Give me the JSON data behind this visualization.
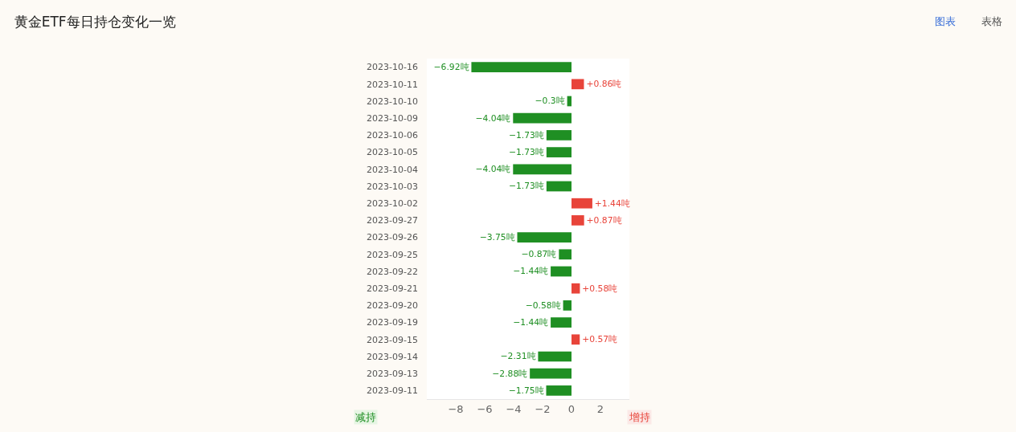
{
  "chart_data": {
    "type": "bar",
    "orientation": "horizontal",
    "title": "黄金ETF每日持仓变化一览",
    "categories": [
      "2023-10-16",
      "2023-10-11",
      "2023-10-10",
      "2023-10-09",
      "2023-10-06",
      "2023-10-05",
      "2023-10-04",
      "2023-10-03",
      "2023-10-02",
      "2023-09-27",
      "2023-09-26",
      "2023-09-25",
      "2023-09-22",
      "2023-09-21",
      "2023-09-20",
      "2023-09-19",
      "2023-09-15",
      "2023-09-14",
      "2023-09-13",
      "2023-09-11"
    ],
    "values": [
      -6.92,
      0.86,
      -0.3,
      -4.04,
      -1.73,
      -1.73,
      -4.04,
      -1.73,
      1.44,
      0.87,
      -3.75,
      -0.87,
      -1.44,
      0.58,
      -0.58,
      -1.44,
      0.57,
      -2.31,
      -2.88,
      -1.75
    ],
    "value_labels": [
      "−6.92吨",
      "+0.86吨",
      "−0.3吨",
      "−4.04吨",
      "−1.73吨",
      "−1.73吨",
      "−4.04吨",
      "−1.73吨",
      "+1.44吨",
      "+0.87吨",
      "−3.75吨",
      "−0.87吨",
      "−1.44吨",
      "+0.58吨",
      "−0.58吨",
      "−1.44吨",
      "+0.57吨",
      "−2.31吨",
      "−2.88吨",
      "−1.75吨"
    ],
    "colors": [
      "#1f8f23",
      "#e8443a",
      "#1f8f23",
      "#1f8f23",
      "#1f8f23",
      "#1f8f23",
      "#1f8f23",
      "#1f8f23",
      "#e8443a",
      "#e8443a",
      "#1f8f23",
      "#1f8f23",
      "#1f8f23",
      "#e8443a",
      "#1f8f23",
      "#1f8f23",
      "#e8443a",
      "#1f8f23",
      "#1f8f23",
      "#1f8f23"
    ],
    "xlim": [
      -10,
      4
    ],
    "xticks": [
      {
        "value": -8,
        "label": "−8"
      },
      {
        "value": -6,
        "label": "−6"
      },
      {
        "value": -4,
        "label": "−4"
      },
      {
        "value": -2,
        "label": "−2"
      },
      0,
      2
    ],
    "legend": false,
    "annotations": [
      "减持",
      "增持",
      "图表",
      "表格"
    ]
  }
}
